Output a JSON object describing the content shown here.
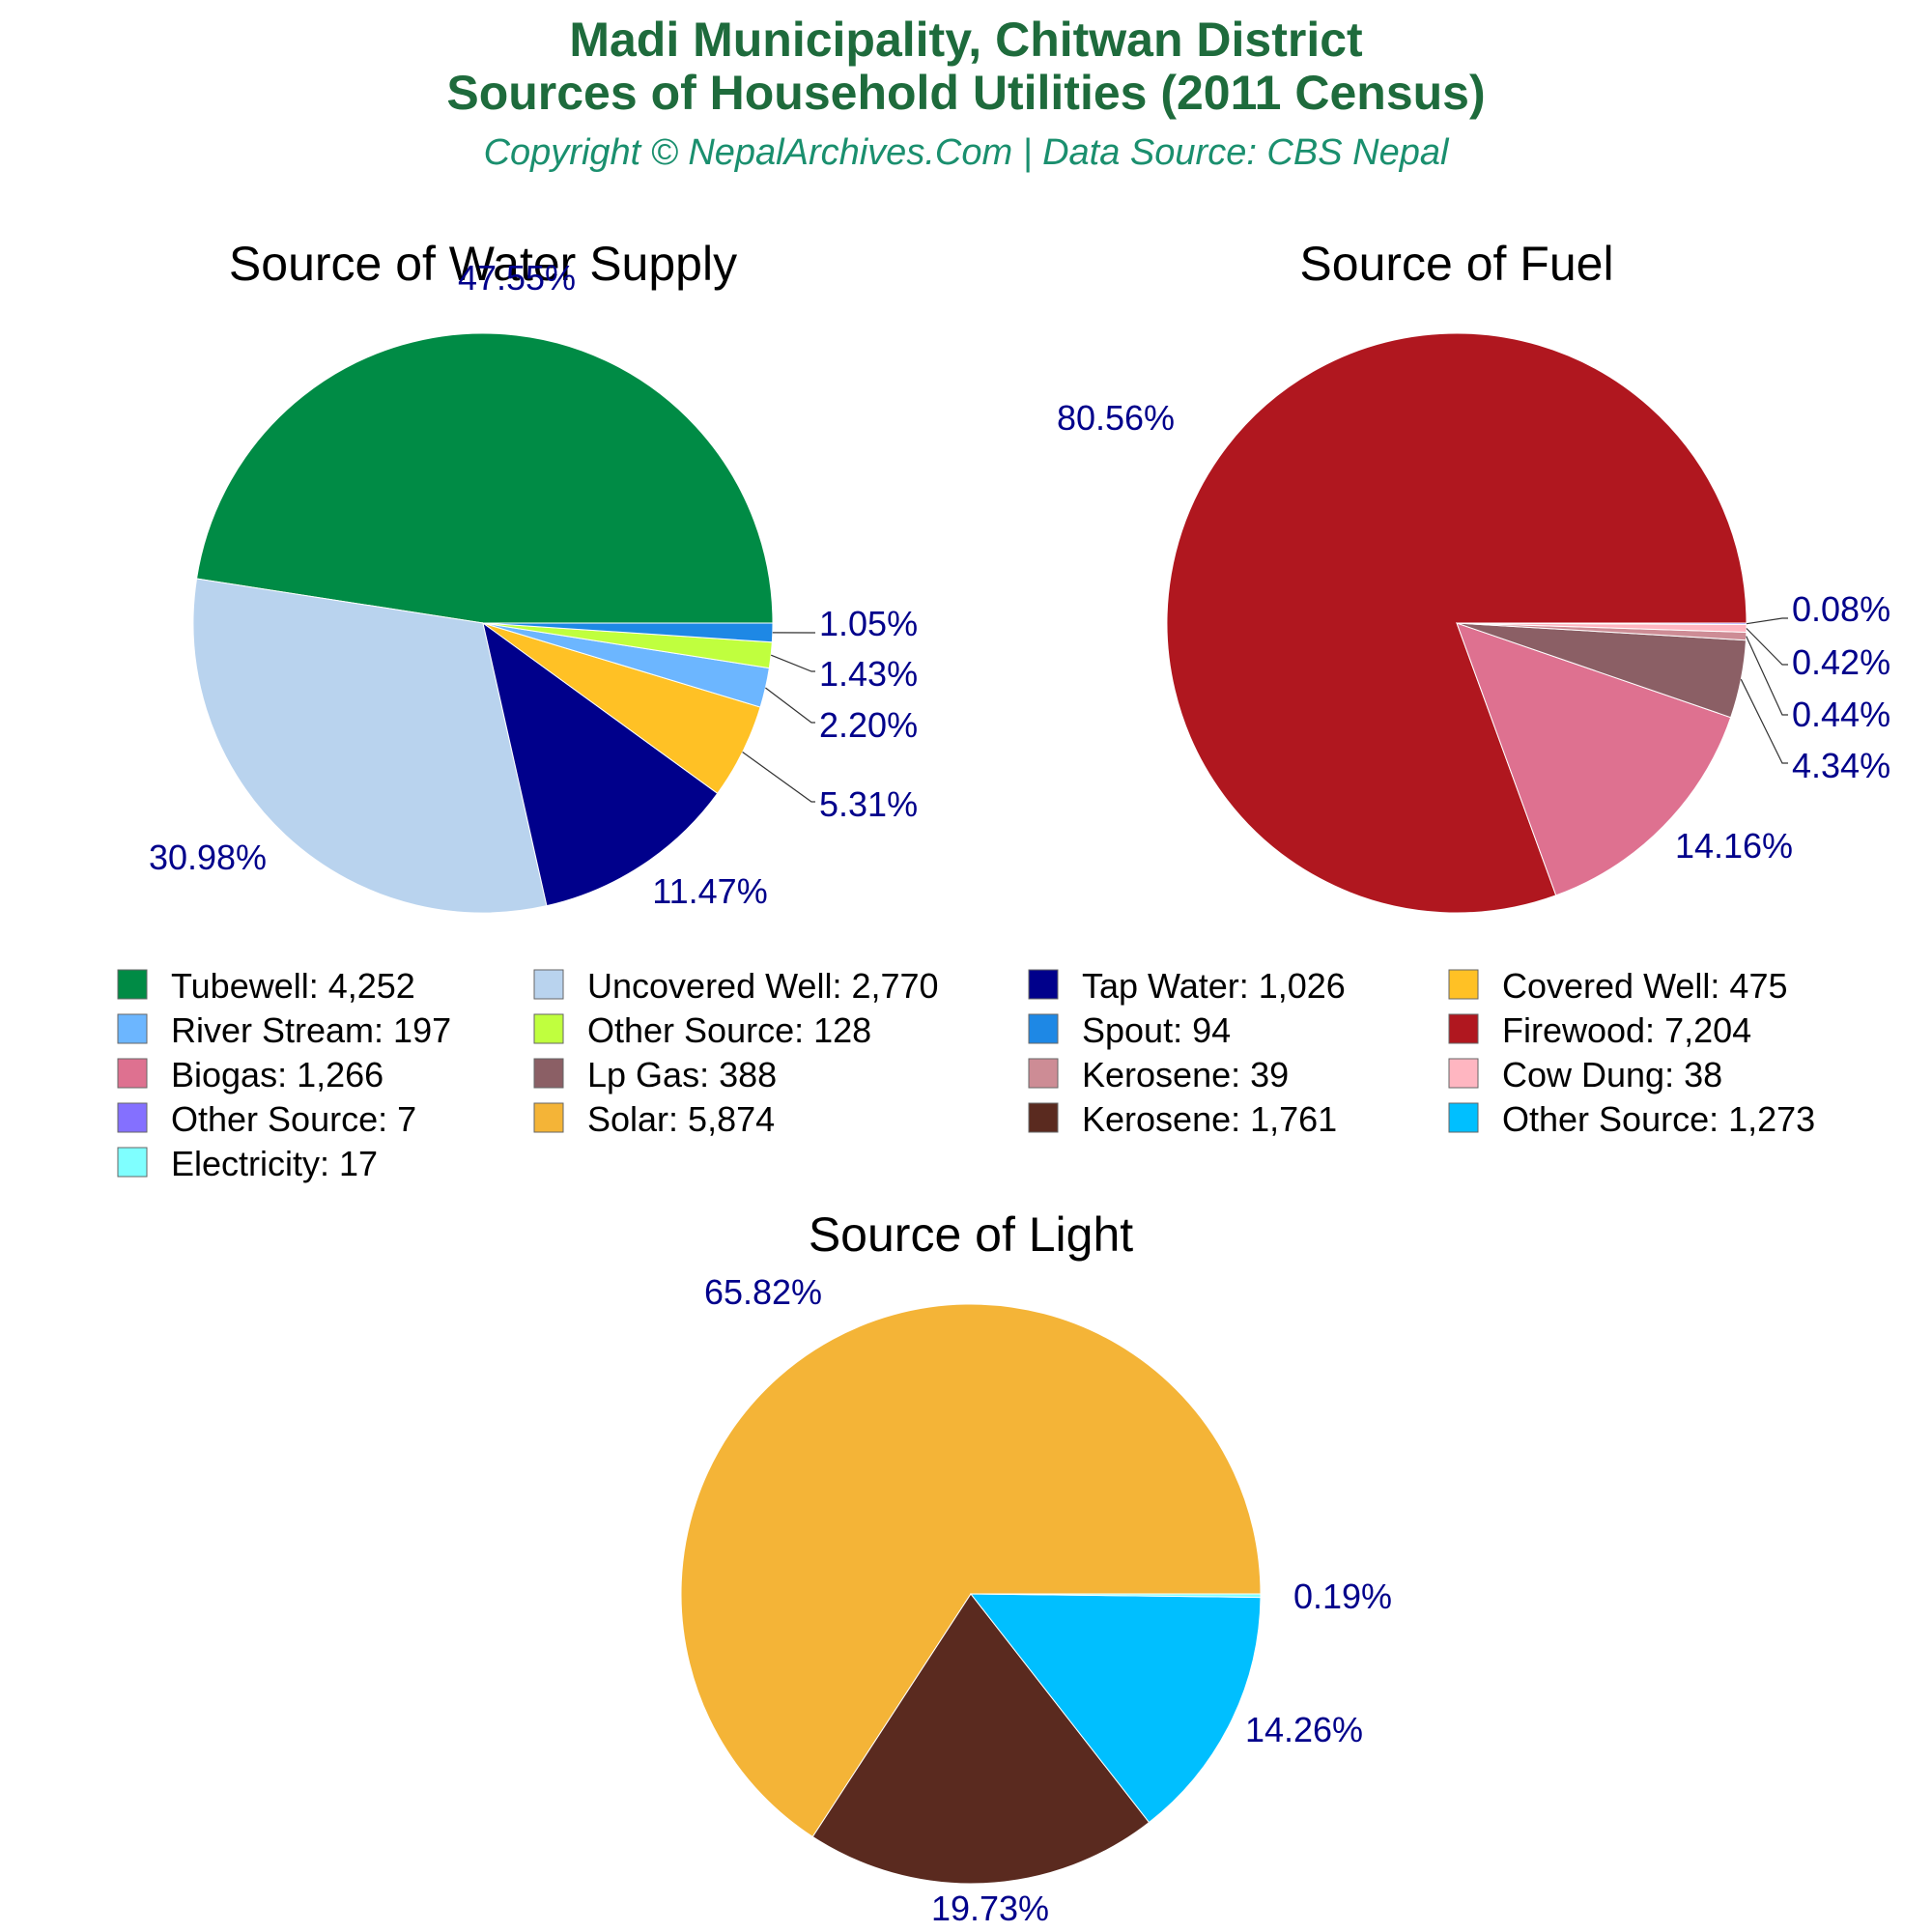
{
  "header": {
    "title_line1": "Madi Municipality, Chitwan District",
    "title_line2": "Sources of Household Utilities (2011 Census)",
    "subtitle": "Copyright © NepalArchives.Com | Data Source: CBS Nepal"
  },
  "chart_data": [
    {
      "type": "pie",
      "title": "Source of Water Supply",
      "slices": [
        {
          "label": "Tubewell",
          "value": 4252,
          "pct_label": "47.55%",
          "color": "#008b45"
        },
        {
          "label": "Uncovered Well",
          "value": 2770,
          "pct_label": "30.98%",
          "color": "#b9d3ee"
        },
        {
          "label": "Tap Water",
          "value": 1026,
          "pct_label": "11.47%",
          "color": "#00008b"
        },
        {
          "label": "Covered Well",
          "value": 475,
          "pct_label": "5.31%",
          "color": "#ffc125"
        },
        {
          "label": "River Stream",
          "value": 197,
          "pct_label": "2.20%",
          "color": "#6cb6ff"
        },
        {
          "label": "Other Source",
          "value": 128,
          "pct_label": "1.43%",
          "color": "#c0ff3e"
        },
        {
          "label": "Spout",
          "value": 94,
          "pct_label": "1.05%",
          "color": "#1e88e5"
        }
      ]
    },
    {
      "type": "pie",
      "title": "Source of Fuel",
      "slices": [
        {
          "label": "Firewood",
          "value": 7204,
          "pct_label": "80.56%",
          "color": "#b0171f"
        },
        {
          "label": "Biogas",
          "value": 1266,
          "pct_label": "14.16%",
          "color": "#de7190"
        },
        {
          "label": "Lp Gas",
          "value": 388,
          "pct_label": "4.34%",
          "color": "#8b5f65"
        },
        {
          "label": "Kerosene",
          "value": 39,
          "pct_label": "0.44%",
          "color": "#cd8c95"
        },
        {
          "label": "Cow Dung",
          "value": 38,
          "pct_label": "0.42%",
          "color": "#ffb6c1"
        },
        {
          "label": "Other Source",
          "value": 7,
          "pct_label": "0.08%",
          "color": "#8470ff"
        }
      ]
    },
    {
      "type": "pie",
      "title": "Source of Light",
      "slices": [
        {
          "label": "Solar",
          "value": 5874,
          "pct_label": "65.82%",
          "color": "#f4b437"
        },
        {
          "label": "Kerosene",
          "value": 1761,
          "pct_label": "19.73%",
          "color": "#5a2a1f"
        },
        {
          "label": "Other Source",
          "value": 1273,
          "pct_label": "14.26%",
          "color": "#00bfff"
        },
        {
          "label": "Electricity",
          "value": 17,
          "pct_label": "0.19%",
          "color": "#7fffff"
        }
      ]
    }
  ],
  "legend": [
    {
      "label": "Tubewell: 4,252",
      "color": "#008b45"
    },
    {
      "label": "Uncovered Well: 2,770",
      "color": "#b9d3ee"
    },
    {
      "label": "Tap Water: 1,026",
      "color": "#00008b"
    },
    {
      "label": "Covered Well: 475",
      "color": "#ffc125"
    },
    {
      "label": "River Stream: 197",
      "color": "#6cb6ff"
    },
    {
      "label": "Other Source: 128",
      "color": "#c0ff3e"
    },
    {
      "label": "Spout: 94",
      "color": "#1e88e5"
    },
    {
      "label": "Firewood: 7,204",
      "color": "#b0171f"
    },
    {
      "label": "Biogas: 1,266",
      "color": "#de7190"
    },
    {
      "label": "Lp Gas: 388",
      "color": "#8b5f65"
    },
    {
      "label": "Kerosene: 39",
      "color": "#cd8c95"
    },
    {
      "label": "Cow Dung: 38",
      "color": "#ffb6c1"
    },
    {
      "label": "Other Source: 7",
      "color": "#8470ff"
    },
    {
      "label": "Solar: 5,874",
      "color": "#f4b437"
    },
    {
      "label": "Kerosene: 1,761",
      "color": "#5a2a1f"
    },
    {
      "label": "Other Source: 1,273",
      "color": "#00bfff"
    },
    {
      "label": "Electricity: 17",
      "color": "#7fffff"
    }
  ]
}
